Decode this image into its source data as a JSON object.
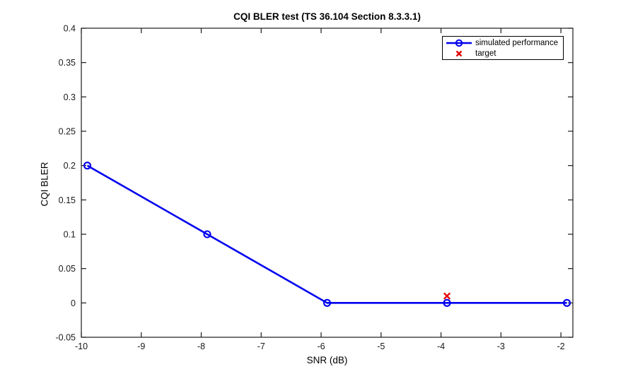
{
  "figure": {
    "background": "#FFFFFF",
    "axis_color": "#1A1A1A",
    "plot_background": "#FFFFFF"
  },
  "chart_data": {
    "type": "line",
    "title": "CQI BLER test (TS 36.104 Section 8.3.3.1)",
    "xlabel": "SNR (dB)",
    "ylabel": "CQI BLER",
    "xlim": [
      -10,
      -1.8
    ],
    "ylim": [
      -0.05,
      0.4
    ],
    "xticks": [
      -10,
      -9,
      -8,
      -7,
      -6,
      -5,
      -4,
      -3,
      -2
    ],
    "yticks": [
      -0.05,
      0,
      0.05,
      0.1,
      0.15,
      0.2,
      0.25,
      0.3,
      0.35,
      0.4
    ],
    "grid": false,
    "legend_position": "top-right-inside",
    "series": [
      {
        "name": "simulated performance",
        "type": "line",
        "marker": "circle",
        "color": "#0000EE",
        "line_width": 2.6,
        "x": [
          -9.9,
          -7.9,
          -5.9,
          -3.9,
          -1.9
        ],
        "y": [
          0.2,
          0.1,
          0,
          0,
          0
        ]
      },
      {
        "name": "target",
        "type": "scatter",
        "marker": "x",
        "color": "#E60000",
        "x": [
          -3.9
        ],
        "y": [
          0.01
        ]
      }
    ]
  }
}
